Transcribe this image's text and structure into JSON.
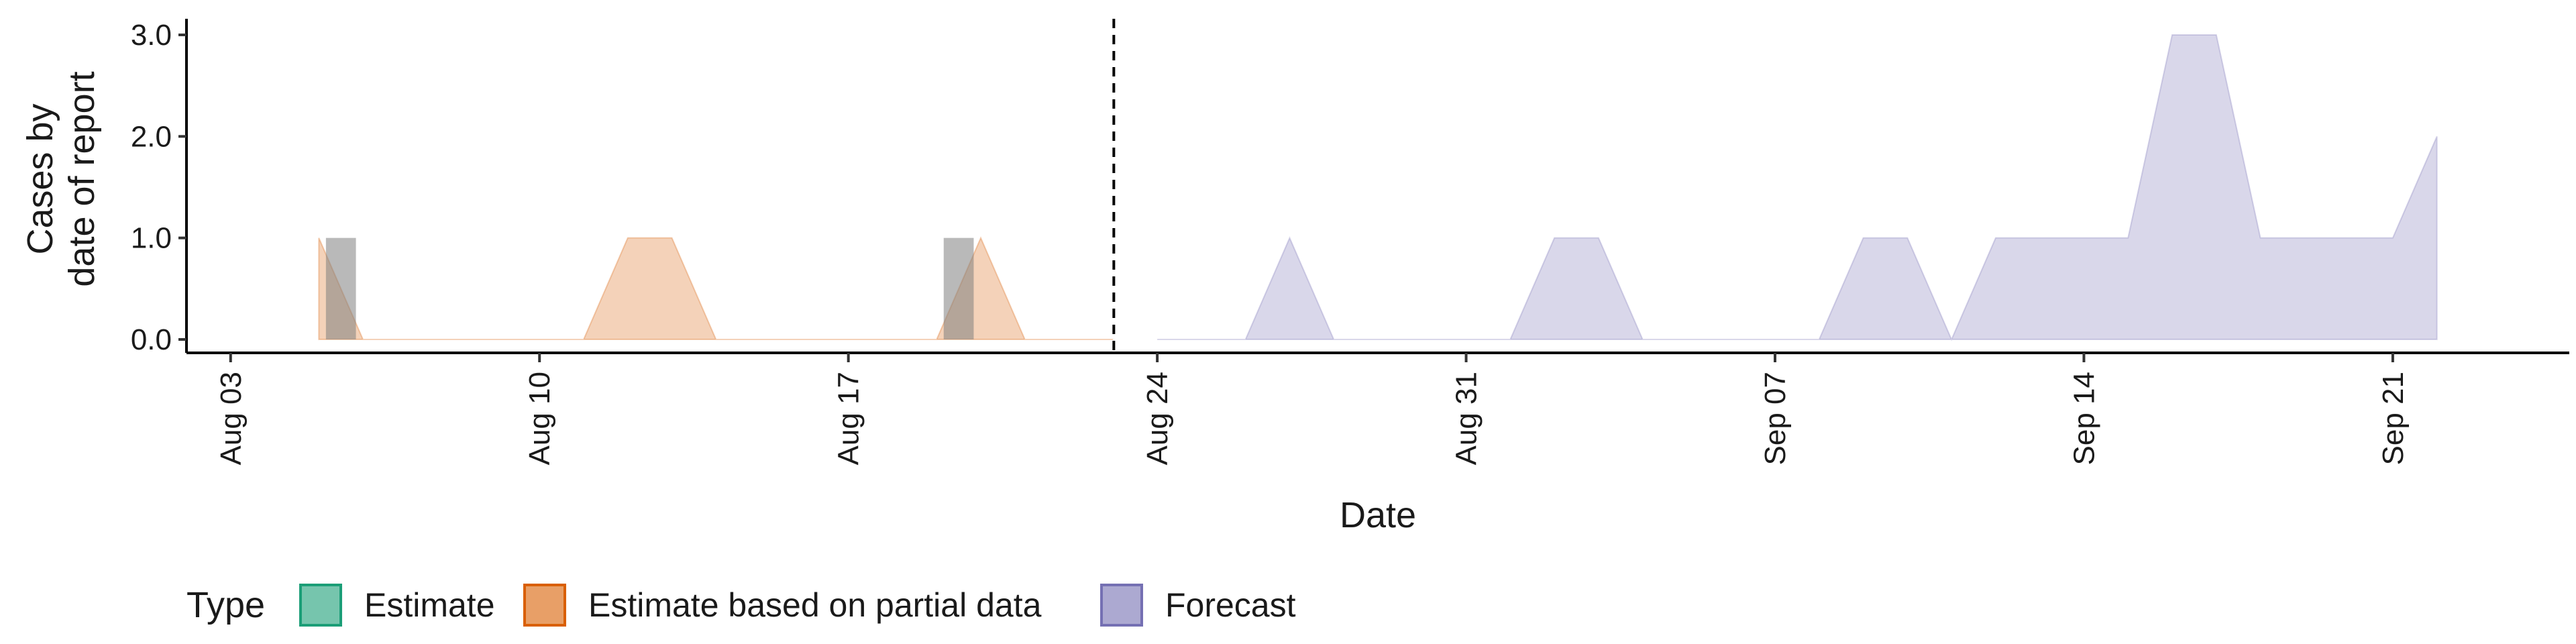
{
  "chart_data": {
    "type": "area",
    "xlabel": "Date",
    "ylabel": [
      "Cases by",
      "date of report"
    ],
    "ylim": [
      0,
      3
    ],
    "x_range": [
      "2021-08-02",
      "2021-09-25"
    ],
    "y_ticks": [
      0,
      1,
      2,
      3
    ],
    "y_tick_labels": [
      "0.0",
      "1.0",
      "2.0",
      "3.0"
    ],
    "x_ticks": [
      "2021-08-03",
      "2021-08-10",
      "2021-08-17",
      "2021-08-24",
      "2021-08-31",
      "2021-09-07",
      "2021-09-14",
      "2021-09-21"
    ],
    "x_tick_labels": [
      "Aug 03",
      "Aug 10",
      "Aug 17",
      "Aug 24",
      "Aug 31",
      "Sep 07",
      "Sep 14",
      "Sep 21"
    ],
    "cutoff_date": "2021-08-23",
    "observed_bars": {
      "color": "#7f7f7f",
      "dates": [
        "2021-08-05",
        "2021-08-19"
      ],
      "values": [
        1,
        1
      ]
    },
    "series": [
      {
        "name": "Estimate",
        "color": "#1b9e77",
        "x": [],
        "y": []
      },
      {
        "name": "Estimate based on partial data",
        "color": "#d95f02",
        "x": [
          "2021-08-05",
          "2021-08-06",
          "2021-08-07",
          "2021-08-08",
          "2021-08-09",
          "2021-08-10",
          "2021-08-11",
          "2021-08-12",
          "2021-08-13",
          "2021-08-14",
          "2021-08-15",
          "2021-08-16",
          "2021-08-17",
          "2021-08-18",
          "2021-08-19",
          "2021-08-20",
          "2021-08-21",
          "2021-08-22",
          "2021-08-23"
        ],
        "y": [
          1,
          0,
          0,
          0,
          0,
          0,
          0,
          1,
          1,
          0,
          0,
          0,
          0,
          0,
          0,
          1,
          0,
          0,
          0
        ]
      },
      {
        "name": "Forecast",
        "color": "#7570b3",
        "x": [
          "2021-08-24",
          "2021-08-25",
          "2021-08-26",
          "2021-08-27",
          "2021-08-28",
          "2021-08-29",
          "2021-08-30",
          "2021-08-31",
          "2021-09-01",
          "2021-09-02",
          "2021-09-03",
          "2021-09-04",
          "2021-09-05",
          "2021-09-06",
          "2021-09-07",
          "2021-09-08",
          "2021-09-09",
          "2021-09-10",
          "2021-09-11",
          "2021-09-12",
          "2021-09-13",
          "2021-09-14",
          "2021-09-15",
          "2021-09-16",
          "2021-09-17",
          "2021-09-18",
          "2021-09-19",
          "2021-09-20",
          "2021-09-21",
          "2021-09-22"
        ],
        "y": [
          0,
          0,
          0,
          1,
          0,
          0,
          0,
          0,
          0,
          1,
          1,
          0,
          0,
          0,
          0,
          0,
          1,
          1,
          0,
          1,
          1,
          1,
          1,
          3,
          3,
          1,
          1,
          1,
          1,
          2
        ]
      }
    ],
    "legend": {
      "title": "Type",
      "position": "bottom",
      "items": [
        "Estimate",
        "Estimate based on partial data",
        "Forecast"
      ]
    },
    "grid": false
  }
}
